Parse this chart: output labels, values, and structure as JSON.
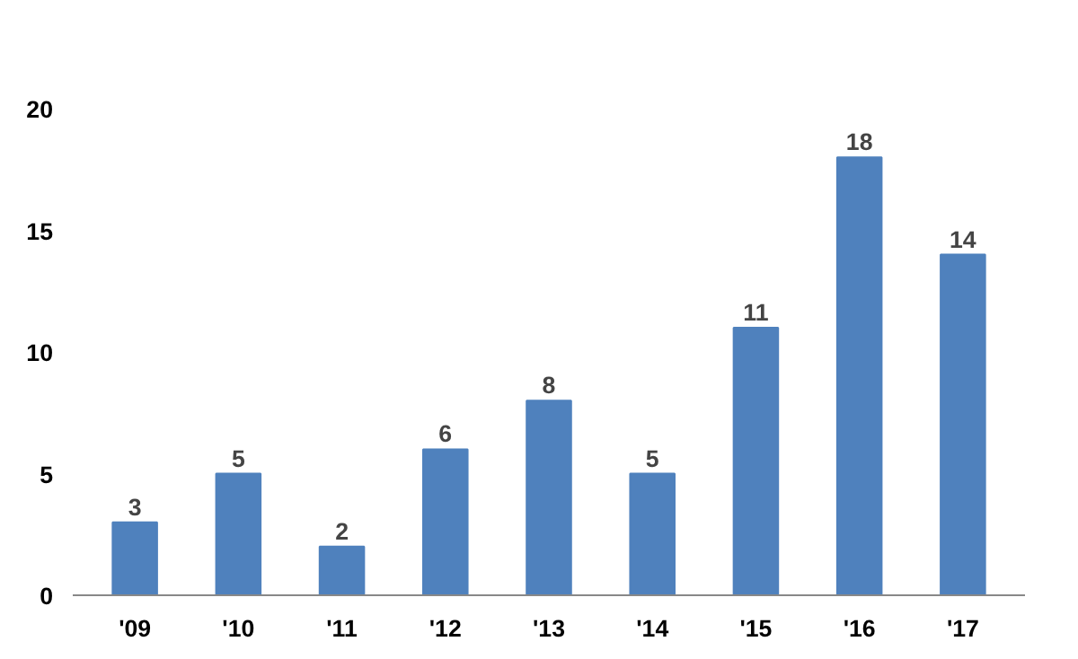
{
  "chart_data": {
    "type": "bar",
    "categories": [
      "'09",
      "'10",
      "'11",
      "'12",
      "'13",
      "'14",
      "'15",
      "'16",
      "'17"
    ],
    "values": [
      3,
      5,
      2,
      6,
      8,
      5,
      11,
      18,
      14
    ],
    "color": "#4f81bd",
    "ylim": [
      0,
      20
    ],
    "yticks": [
      0,
      5,
      10,
      15,
      20
    ],
    "grid": false,
    "data_labels": true
  }
}
